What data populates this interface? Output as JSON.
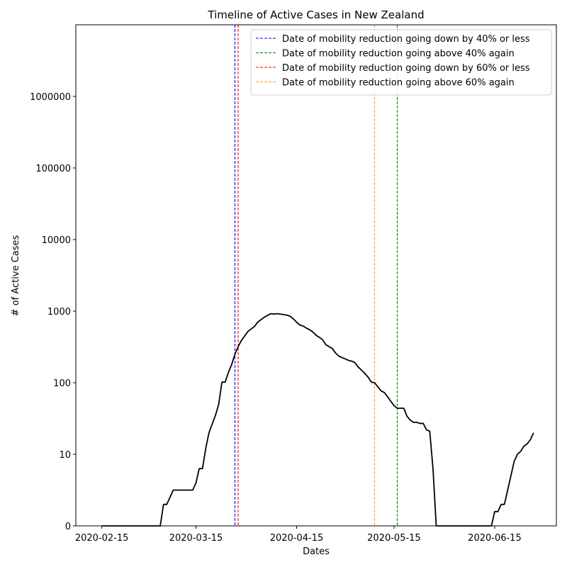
{
  "chart_data": {
    "type": "line",
    "title": "Timeline of Active Cases in New Zealand",
    "xlabel": "Dates",
    "ylabel": "# of Active Cases",
    "y_scale": "symlog",
    "grid": false,
    "legend_position": "top-right",
    "x_ticks": [
      "2020-02-15",
      "2020-03-15",
      "2020-04-15",
      "2020-05-15",
      "2020-06-15"
    ],
    "y_ticks": [
      "0",
      "10",
      "100",
      "1000",
      "10000",
      "100000",
      "1000000"
    ],
    "xlim": [
      "2020-02-07",
      "2020-07-04"
    ],
    "ylim": [
      0,
      10000000
    ],
    "series": [
      {
        "color": "#000000",
        "points": [
          [
            "2020-02-15",
            0
          ],
          [
            "2020-03-04",
            0
          ],
          [
            "2020-03-05",
            3
          ],
          [
            "2020-03-06",
            3
          ],
          [
            "2020-03-07",
            4
          ],
          [
            "2020-03-08",
            5
          ],
          [
            "2020-03-14",
            5
          ],
          [
            "2020-03-15",
            6
          ],
          [
            "2020-03-16",
            8
          ],
          [
            "2020-03-17",
            8
          ],
          [
            "2020-03-18",
            12
          ],
          [
            "2020-03-19",
            20
          ],
          [
            "2020-03-21",
            35
          ],
          [
            "2020-03-22",
            50
          ],
          [
            "2020-03-23",
            102
          ],
          [
            "2020-03-24",
            102
          ],
          [
            "2020-03-25",
            140
          ],
          [
            "2020-03-26",
            180
          ],
          [
            "2020-03-27",
            250
          ],
          [
            "2020-03-28",
            320
          ],
          [
            "2020-03-29",
            390
          ],
          [
            "2020-03-30",
            450
          ],
          [
            "2020-03-31",
            520
          ],
          [
            "2020-04-02",
            610
          ],
          [
            "2020-04-03",
            700
          ],
          [
            "2020-04-05",
            820
          ],
          [
            "2020-04-07",
            920
          ],
          [
            "2020-04-08",
            910
          ],
          [
            "2020-04-09",
            920
          ],
          [
            "2020-04-10",
            910
          ],
          [
            "2020-04-12",
            880
          ],
          [
            "2020-04-13",
            850
          ],
          [
            "2020-04-14",
            780
          ],
          [
            "2020-04-15",
            700
          ],
          [
            "2020-04-16",
            640
          ],
          [
            "2020-04-17",
            620
          ],
          [
            "2020-04-18",
            580
          ],
          [
            "2020-04-19",
            550
          ],
          [
            "2020-04-20",
            510
          ],
          [
            "2020-04-21",
            460
          ],
          [
            "2020-04-22",
            430
          ],
          [
            "2020-04-23",
            400
          ],
          [
            "2020-04-24",
            340
          ],
          [
            "2020-04-25",
            320
          ],
          [
            "2020-04-26",
            300
          ],
          [
            "2020-04-27",
            260
          ],
          [
            "2020-04-28",
            235
          ],
          [
            "2020-04-30",
            215
          ],
          [
            "2020-05-01",
            205
          ],
          [
            "2020-05-02",
            200
          ],
          [
            "2020-05-03",
            190
          ],
          [
            "2020-05-04",
            165
          ],
          [
            "2020-05-05",
            150
          ],
          [
            "2020-05-06",
            135
          ],
          [
            "2020-05-07",
            120
          ],
          [
            "2020-05-08",
            102
          ],
          [
            "2020-05-09",
            100
          ],
          [
            "2020-05-10",
            88
          ],
          [
            "2020-05-11",
            77
          ],
          [
            "2020-05-12",
            73
          ],
          [
            "2020-05-13",
            64
          ],
          [
            "2020-05-14",
            55
          ],
          [
            "2020-05-15",
            48
          ],
          [
            "2020-05-16",
            44
          ],
          [
            "2020-05-18",
            44
          ],
          [
            "2020-05-19",
            34
          ],
          [
            "2020-05-20",
            30
          ],
          [
            "2020-05-21",
            28
          ],
          [
            "2020-05-22",
            28
          ],
          [
            "2020-05-23",
            27
          ],
          [
            "2020-05-24",
            27
          ],
          [
            "2020-05-25",
            22
          ],
          [
            "2020-05-26",
            21
          ],
          [
            "2020-05-27",
            8
          ],
          [
            "2020-05-28",
            0
          ],
          [
            "2020-06-14",
            0
          ],
          [
            "2020-06-15",
            2
          ],
          [
            "2020-06-16",
            2
          ],
          [
            "2020-06-17",
            3
          ],
          [
            "2020-06-18",
            3
          ],
          [
            "2020-06-19",
            5
          ],
          [
            "2020-06-20",
            7
          ],
          [
            "2020-06-21",
            9
          ],
          [
            "2020-06-22",
            10
          ],
          [
            "2020-06-23",
            11
          ],
          [
            "2020-06-24",
            13
          ],
          [
            "2020-06-25",
            14
          ],
          [
            "2020-06-26",
            16
          ],
          [
            "2020-06-27",
            20
          ]
        ]
      }
    ],
    "vlines": [
      {
        "date": "2020-03-27",
        "color": "#0000ff",
        "label": "Date of mobility reduction going down by 40% or less"
      },
      {
        "date": "2020-05-16",
        "color": "#008000",
        "label": "Date of mobility reduction going above 40% again"
      },
      {
        "date": "2020-03-28",
        "color": "#ff0000",
        "label": "Date of mobility reduction going down by 60% or less"
      },
      {
        "date": "2020-05-09",
        "color": "#ffa500",
        "label": "Date of mobility reduction going above 60% again"
      }
    ]
  }
}
